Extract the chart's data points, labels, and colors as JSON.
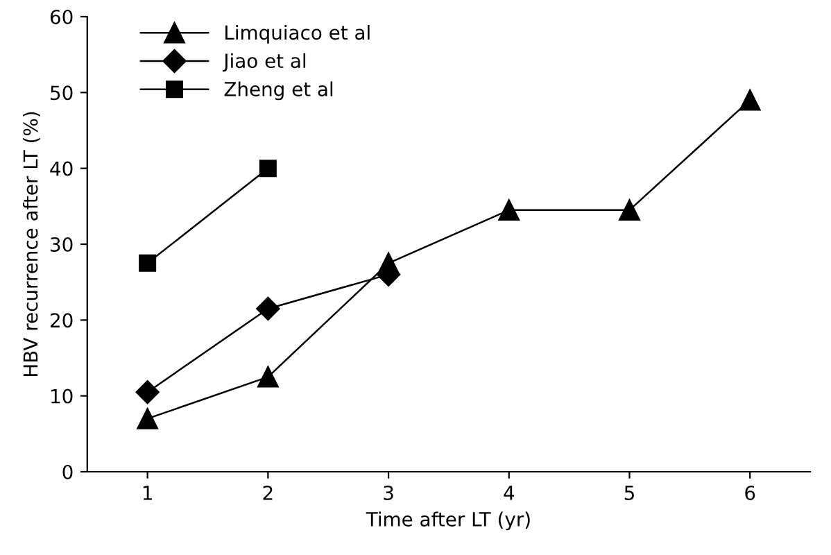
{
  "chart_data": {
    "type": "line",
    "xlabel": "Time after LT (yr)",
    "ylabel": "HBV recurrence after LT (%)",
    "x": [
      1,
      2,
      3,
      4,
      5,
      6
    ],
    "xlim": [
      0.5,
      6.5
    ],
    "xticks": [
      1,
      2,
      3,
      4,
      5,
      6
    ],
    "ylim": [
      0,
      60
    ],
    "yticks": [
      0,
      10,
      20,
      30,
      40,
      50,
      60
    ],
    "grid": false,
    "legend": "top left",
    "line_style": "solid",
    "series": [
      {
        "name": "Limquiaco et al",
        "color": "#000000",
        "marker": "triangle",
        "values": [
          7,
          12.5,
          27.5,
          34.5,
          34.5,
          49
        ]
      },
      {
        "name": "Jiao et al",
        "color": "#000000",
        "marker": "diamond",
        "values": [
          10.5,
          21.5,
          26,
          null,
          null,
          null
        ]
      },
      {
        "name": "Zheng et al",
        "color": "#000000",
        "marker": "square",
        "values": [
          27.5,
          40,
          null,
          null,
          null,
          null
        ]
      }
    ]
  }
}
